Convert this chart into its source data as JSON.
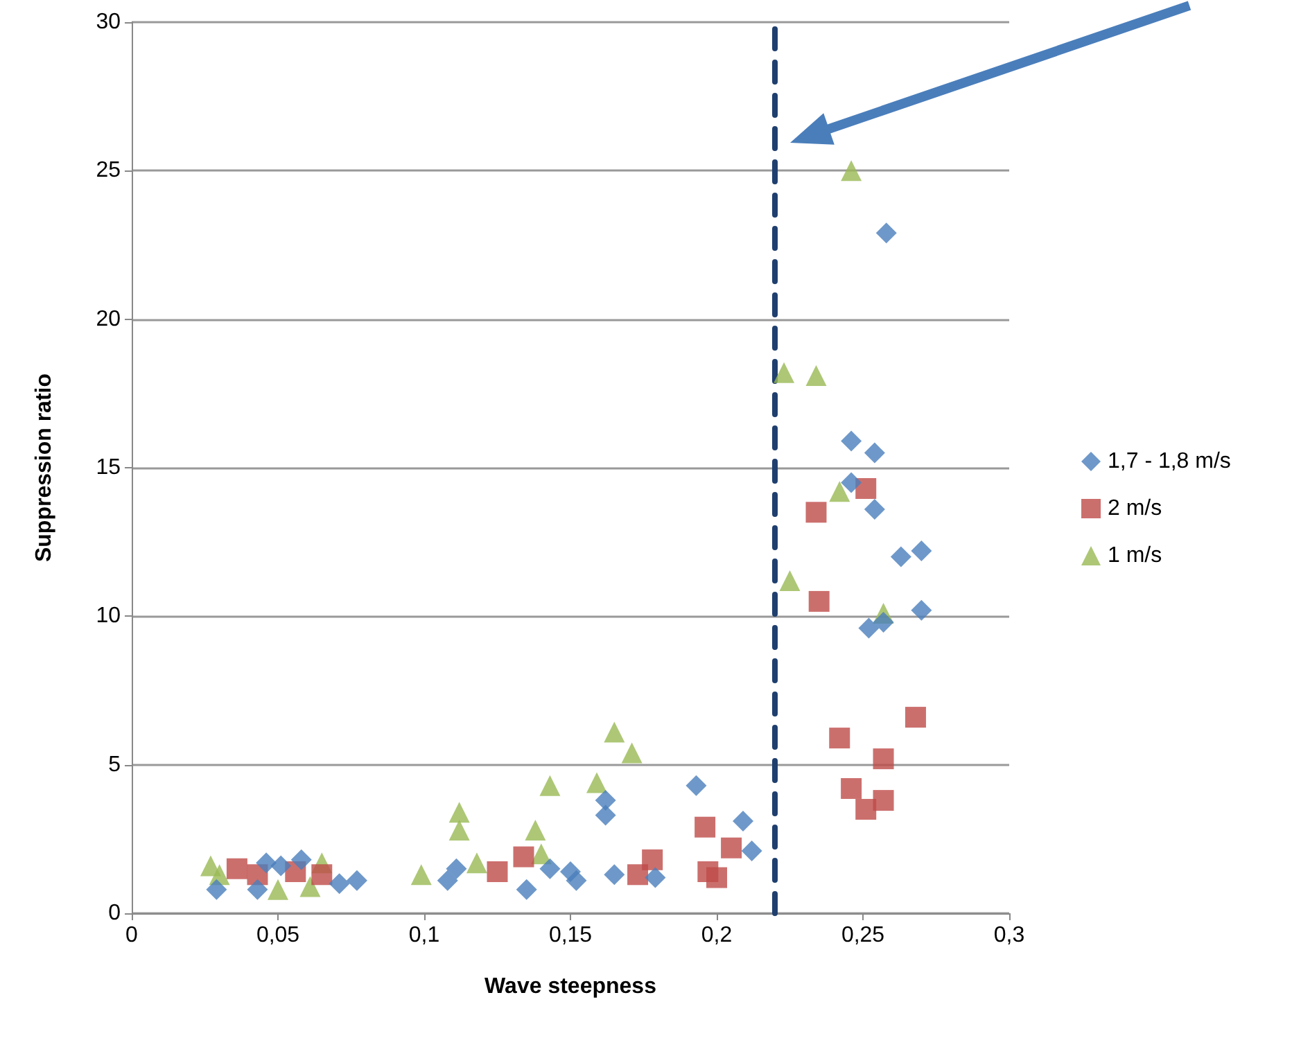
{
  "chart_data": {
    "type": "scatter",
    "xlabel": "Wave steepness",
    "ylabel": "Suppression ratio",
    "xlim": [
      0,
      0.3
    ],
    "xticks": [
      0,
      {
        "value": 0.05,
        "label": "0,05"
      },
      {
        "value": 0.1,
        "label": "0,1"
      },
      {
        "value": 0.15,
        "label": "0,15"
      },
      {
        "value": 0.2,
        "label": "0,2"
      },
      {
        "value": 0.25,
        "label": "0,25"
      },
      {
        "value": 0.3,
        "label": "0,3"
      }
    ],
    "ylim": [
      0,
      30
    ],
    "yticks": [
      0,
      5,
      10,
      15,
      20,
      25,
      30
    ],
    "grid": "y",
    "legend": "right",
    "ref_lines": [
      {
        "axis": "x",
        "value": 0.22,
        "color": "#1f3f6e",
        "line_style": "dashed"
      }
    ],
    "series": [
      {
        "name": "1,7 - 1,8 m/s",
        "color": "#4a7ebb",
        "marker": "diamond",
        "x": [
          0.029,
          0.043,
          0.046,
          0.051,
          0.058,
          0.071,
          0.077,
          0.108,
          0.111,
          0.135,
          0.143,
          0.15,
          0.152,
          0.162,
          0.162,
          0.165,
          0.179,
          0.193,
          0.209,
          0.212,
          0.246,
          0.254,
          0.246,
          0.254,
          0.258,
          0.263,
          0.27,
          0.27,
          0.252,
          0.257
        ],
        "values": [
          0.8,
          0.8,
          1.7,
          1.6,
          1.8,
          1.0,
          1.1,
          1.1,
          1.5,
          0.8,
          1.5,
          1.4,
          1.1,
          3.8,
          3.3,
          1.3,
          1.2,
          4.3,
          3.1,
          2.1,
          15.9,
          15.5,
          14.5,
          13.6,
          22.9,
          12.0,
          12.2,
          10.2,
          9.6,
          9.8
        ]
      },
      {
        "name": "2 m/s",
        "color": "#be4b48",
        "marker": "square",
        "x": [
          0.036,
          0.043,
          0.056,
          0.065,
          0.125,
          0.134,
          0.173,
          0.178,
          0.196,
          0.197,
          0.2,
          0.205,
          0.251,
          0.234,
          0.235,
          0.242,
          0.268,
          0.257,
          0.246,
          0.251,
          0.257
        ],
        "values": [
          1.5,
          1.3,
          1.4,
          1.3,
          1.4,
          1.9,
          1.3,
          1.8,
          2.9,
          1.4,
          1.2,
          2.2,
          14.3,
          13.5,
          10.5,
          5.9,
          6.6,
          5.2,
          4.2,
          3.5,
          3.8
        ]
      },
      {
        "name": "1 m/s",
        "color": "#98b954",
        "marker": "triangle",
        "x": [
          0.027,
          0.03,
          0.05,
          0.061,
          0.065,
          0.099,
          0.112,
          0.112,
          0.118,
          0.138,
          0.14,
          0.143,
          0.159,
          0.165,
          0.171,
          0.246,
          0.223,
          0.234,
          0.242,
          0.225,
          0.257
        ],
        "values": [
          1.6,
          1.3,
          0.8,
          0.9,
          1.7,
          1.3,
          3.4,
          2.8,
          1.7,
          2.8,
          2.0,
          4.3,
          4.4,
          6.1,
          5.4,
          25.0,
          18.2,
          18.1,
          14.2,
          11.2,
          10.1
        ]
      }
    ]
  }
}
